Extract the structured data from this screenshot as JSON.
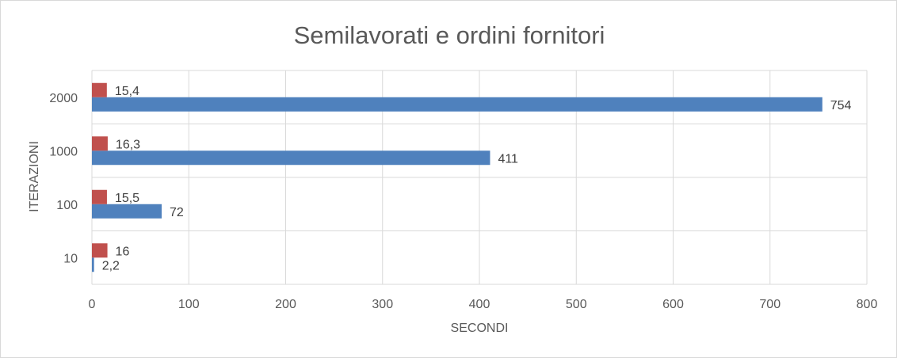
{
  "chart_data": {
    "type": "bar",
    "orientation": "horizontal",
    "title": "Semilavorati e ordini fornitori",
    "xlabel": "SECONDI",
    "ylabel": "ITERAZIONI",
    "categories": [
      "10",
      "100",
      "1000",
      "2000"
    ],
    "xlim": [
      0,
      800
    ],
    "xticks": [
      0,
      100,
      200,
      300,
      400,
      500,
      600,
      700,
      800
    ],
    "grid": true,
    "legend": "none",
    "series": [
      {
        "color": "#4f81bd",
        "values": [
          2.2,
          72,
          411,
          754
        ],
        "labels": [
          "2,2",
          "72",
          "411",
          "754"
        ]
      },
      {
        "color": "#c0504d",
        "values": [
          16,
          15.5,
          16.3,
          15.4
        ],
        "labels": [
          "16",
          "15,5",
          "16,3",
          "15,4"
        ]
      }
    ]
  }
}
